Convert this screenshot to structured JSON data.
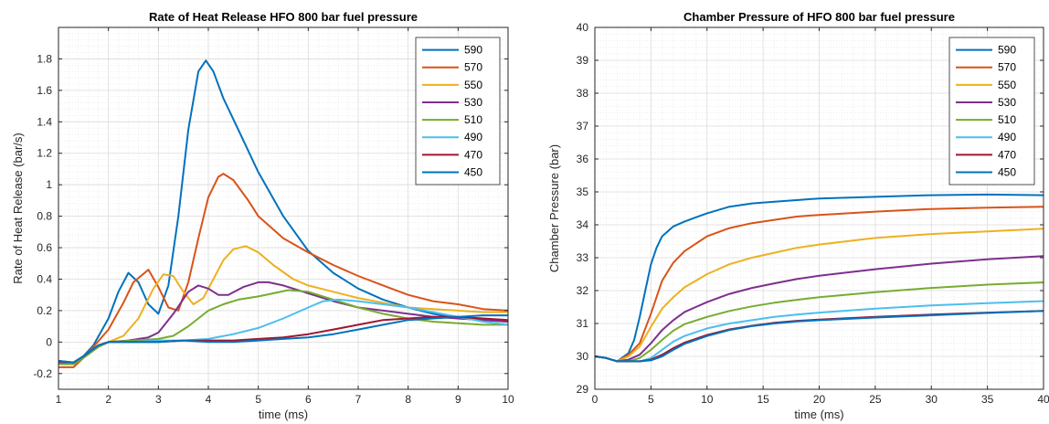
{
  "chart_data": [
    {
      "type": "line",
      "title": "Rate of Heat Release HFO 800 bar fuel pressure",
      "xlabel": "time (ms)",
      "ylabel": "Rate of Heat Release (bar/s)",
      "xlim": [
        1,
        10
      ],
      "ylim": [
        -0.3,
        2.0
      ],
      "xticks": [
        1,
        2,
        3,
        4,
        5,
        6,
        7,
        8,
        9,
        10
      ],
      "yticks": [
        -0.2,
        0,
        0.2,
        0.4,
        0.6,
        0.8,
        1,
        1.2,
        1.4,
        1.6,
        1.8
      ],
      "grid": "major and minor",
      "legend_position": "top-right",
      "series": [
        {
          "name": "590",
          "color": "#0072BD",
          "x": [
            1,
            1.3,
            1.5,
            1.7,
            2,
            2.2,
            2.4,
            2.6,
            2.8,
            3,
            3.2,
            3.4,
            3.6,
            3.8,
            3.95,
            4.1,
            4.3,
            4.6,
            5,
            5.5,
            6,
            6.5,
            7,
            7.5,
            8,
            8.5,
            9,
            9.5,
            10
          ],
          "y": [
            -0.12,
            -0.13,
            -0.09,
            -0.02,
            0.15,
            0.32,
            0.44,
            0.38,
            0.24,
            0.18,
            0.36,
            0.8,
            1.35,
            1.72,
            1.79,
            1.72,
            1.55,
            1.35,
            1.08,
            0.8,
            0.58,
            0.44,
            0.34,
            0.27,
            0.22,
            0.18,
            0.15,
            0.14,
            0.13
          ]
        },
        {
          "name": "570",
          "color": "#D95319",
          "x": [
            1,
            1.3,
            1.5,
            1.7,
            2,
            2.3,
            2.5,
            2.8,
            3,
            3.2,
            3.4,
            3.6,
            3.8,
            4,
            4.2,
            4.3,
            4.5,
            4.8,
            5,
            5.5,
            6,
            6.5,
            7,
            7.5,
            8,
            8.5,
            9,
            9.5,
            10
          ],
          "y": [
            -0.16,
            -0.16,
            -0.1,
            -0.03,
            0.08,
            0.25,
            0.38,
            0.46,
            0.35,
            0.22,
            0.2,
            0.38,
            0.66,
            0.92,
            1.05,
            1.07,
            1.03,
            0.9,
            0.8,
            0.66,
            0.57,
            0.49,
            0.42,
            0.36,
            0.3,
            0.26,
            0.24,
            0.21,
            0.2
          ]
        },
        {
          "name": "550",
          "color": "#EDB120",
          "x": [
            1,
            1.3,
            1.5,
            1.8,
            2,
            2.3,
            2.6,
            2.9,
            3.1,
            3.3,
            3.5,
            3.7,
            3.9,
            4.1,
            4.3,
            4.5,
            4.75,
            5,
            5.3,
            5.7,
            6,
            6.5,
            7,
            7.5,
            8,
            8.5,
            9,
            9.5,
            10
          ],
          "y": [
            -0.13,
            -0.14,
            -0.1,
            -0.03,
            0,
            0.04,
            0.15,
            0.34,
            0.43,
            0.42,
            0.32,
            0.24,
            0.28,
            0.4,
            0.52,
            0.59,
            0.61,
            0.57,
            0.49,
            0.4,
            0.36,
            0.32,
            0.28,
            0.25,
            0.22,
            0.21,
            0.2,
            0.19,
            0.19
          ]
        },
        {
          "name": "530",
          "color": "#7E2F8E",
          "x": [
            1,
            1.3,
            1.5,
            1.8,
            2,
            2.4,
            2.8,
            3,
            3.3,
            3.6,
            3.8,
            4,
            4.2,
            4.4,
            4.7,
            5,
            5.2,
            5.5,
            6,
            6.5,
            7,
            7.5,
            8,
            8.5,
            9,
            9.5,
            10
          ],
          "y": [
            -0.13,
            -0.14,
            -0.1,
            -0.03,
            0,
            0.01,
            0.03,
            0.06,
            0.18,
            0.32,
            0.36,
            0.34,
            0.3,
            0.3,
            0.35,
            0.38,
            0.38,
            0.36,
            0.31,
            0.26,
            0.22,
            0.2,
            0.18,
            0.16,
            0.15,
            0.14,
            0.13
          ]
        },
        {
          "name": "510",
          "color": "#77AC30",
          "x": [
            1,
            1.3,
            1.5,
            1.8,
            2,
            2.5,
            3,
            3.3,
            3.6,
            4,
            4.3,
            4.6,
            5,
            5.3,
            5.6,
            6,
            6.5,
            7,
            7.5,
            8,
            8.5,
            9,
            9.5,
            10
          ],
          "y": [
            -0.14,
            -0.14,
            -0.1,
            -0.03,
            0,
            0.01,
            0.02,
            0.04,
            0.1,
            0.2,
            0.24,
            0.27,
            0.29,
            0.31,
            0.33,
            0.32,
            0.27,
            0.22,
            0.18,
            0.15,
            0.13,
            0.12,
            0.11,
            0.11
          ]
        },
        {
          "name": "490",
          "color": "#4DBEEE",
          "x": [
            1,
            1.3,
            1.5,
            1.8,
            2,
            2.5,
            3,
            3.5,
            4,
            4.5,
            5,
            5.5,
            6,
            6.3,
            6.6,
            7,
            7.5,
            8,
            8.5,
            9,
            9.5,
            10
          ],
          "y": [
            -0.12,
            -0.13,
            -0.09,
            -0.02,
            0,
            0.0,
            0.01,
            0.01,
            0.02,
            0.05,
            0.09,
            0.15,
            0.22,
            0.26,
            0.27,
            0.26,
            0.24,
            0.22,
            0.19,
            0.16,
            0.13,
            0.11
          ]
        },
        {
          "name": "470",
          "color": "#A2142F",
          "x": [
            1,
            1.3,
            1.5,
            1.8,
            2,
            2.5,
            3,
            3.5,
            4,
            4.5,
            5,
            5.5,
            6,
            6.5,
            7,
            7.5,
            8,
            8.5,
            9,
            9.5,
            10
          ],
          "y": [
            -0.12,
            -0.13,
            -0.09,
            -0.02,
            0,
            0.0,
            0.0,
            0.01,
            0.01,
            0.01,
            0.02,
            0.03,
            0.05,
            0.08,
            0.11,
            0.14,
            0.15,
            0.16,
            0.16,
            0.15,
            0.14
          ]
        },
        {
          "name": "450",
          "color": "#0072BD",
          "x": [
            1,
            1.3,
            1.5,
            1.8,
            2,
            2.5,
            3,
            3.5,
            4,
            4.5,
            5,
            5.5,
            6,
            6.5,
            7,
            7.5,
            8,
            8.5,
            9,
            9.5,
            10
          ],
          "y": [
            -0.12,
            -0.13,
            -0.09,
            -0.02,
            0,
            0.0,
            0.0,
            0.01,
            0.0,
            0.0,
            0.01,
            0.02,
            0.03,
            0.05,
            0.08,
            0.11,
            0.14,
            0.15,
            0.16,
            0.17,
            0.17
          ]
        }
      ]
    },
    {
      "type": "line",
      "title": "Chamber Pressure of HFO 800 bar fuel pressure",
      "xlabel": "time (ms)",
      "ylabel": "Chamber Pressure (bar)",
      "xlim": [
        0,
        40
      ],
      "ylim": [
        29,
        40
      ],
      "xticks": [
        0,
        5,
        10,
        15,
        20,
        25,
        30,
        35,
        40
      ],
      "yticks": [
        29,
        30,
        31,
        32,
        33,
        34,
        35,
        36,
        37,
        38,
        39,
        40
      ],
      "grid": "major and minor",
      "legend_position": "top-right",
      "series": [
        {
          "name": "590",
          "color": "#0072BD",
          "x": [
            0,
            1,
            2,
            3,
            3.5,
            4,
            4.5,
            5,
            5.5,
            6,
            7,
            8,
            10,
            12,
            14,
            16,
            18,
            20,
            25,
            30,
            35,
            40
          ],
          "y": [
            30,
            29.95,
            29.85,
            30.1,
            30.5,
            31.2,
            32,
            32.8,
            33.3,
            33.65,
            33.95,
            34.1,
            34.35,
            34.55,
            34.65,
            34.7,
            34.75,
            34.8,
            34.85,
            34.9,
            34.92,
            34.9
          ]
        },
        {
          "name": "570",
          "color": "#D95319",
          "x": [
            0,
            1,
            2,
            3,
            4,
            5,
            5.5,
            6,
            7,
            8,
            10,
            12,
            14,
            16,
            18,
            20,
            25,
            30,
            35,
            40
          ],
          "y": [
            30,
            29.95,
            29.85,
            30.05,
            30.4,
            31.3,
            31.8,
            32.3,
            32.85,
            33.2,
            33.65,
            33.9,
            34.05,
            34.15,
            34.25,
            34.3,
            34.4,
            34.48,
            34.52,
            34.55
          ]
        },
        {
          "name": "550",
          "color": "#EDB120",
          "x": [
            0,
            1,
            2,
            3,
            4,
            5,
            6,
            7,
            8,
            10,
            12,
            14,
            16,
            18,
            20,
            25,
            30,
            35,
            40
          ],
          "y": [
            30,
            29.95,
            29.85,
            30,
            30.3,
            30.9,
            31.45,
            31.8,
            32.1,
            32.5,
            32.8,
            33,
            33.15,
            33.3,
            33.4,
            33.6,
            33.72,
            33.8,
            33.88
          ]
        },
        {
          "name": "530",
          "color": "#7E2F8E",
          "x": [
            0,
            1,
            2,
            3,
            4,
            5,
            6,
            7,
            8,
            10,
            12,
            14,
            16,
            18,
            20,
            25,
            30,
            35,
            40
          ],
          "y": [
            30,
            29.95,
            29.85,
            29.9,
            30.05,
            30.4,
            30.8,
            31.1,
            31.35,
            31.65,
            31.9,
            32.08,
            32.22,
            32.35,
            32.45,
            32.65,
            32.82,
            32.95,
            33.05
          ]
        },
        {
          "name": "510",
          "color": "#77AC30",
          "x": [
            0,
            1,
            2,
            3,
            4,
            5,
            6,
            7,
            8,
            10,
            12,
            14,
            16,
            18,
            20,
            25,
            30,
            35,
            40
          ],
          "y": [
            30,
            29.95,
            29.85,
            29.85,
            29.95,
            30.2,
            30.5,
            30.78,
            30.98,
            31.2,
            31.38,
            31.52,
            31.63,
            31.72,
            31.8,
            31.95,
            32.08,
            32.18,
            32.25
          ]
        },
        {
          "name": "490",
          "color": "#4DBEEE",
          "x": [
            0,
            1,
            2,
            3,
            4,
            5,
            6,
            7,
            8,
            10,
            12,
            14,
            16,
            18,
            20,
            25,
            30,
            35,
            40
          ],
          "y": [
            30,
            29.95,
            29.85,
            29.85,
            29.85,
            29.95,
            30.2,
            30.45,
            30.62,
            30.85,
            31.0,
            31.1,
            31.2,
            31.27,
            31.33,
            31.45,
            31.55,
            31.62,
            31.68
          ]
        },
        {
          "name": "470",
          "color": "#A2142F",
          "x": [
            0,
            1,
            2,
            3,
            4,
            5,
            6,
            7,
            8,
            10,
            12,
            14,
            16,
            18,
            20,
            25,
            30,
            35,
            40
          ],
          "y": [
            30,
            29.95,
            29.85,
            29.85,
            29.85,
            29.9,
            30.05,
            30.25,
            30.42,
            30.65,
            30.82,
            30.93,
            31.02,
            31.08,
            31.12,
            31.2,
            31.27,
            31.33,
            31.38
          ]
        },
        {
          "name": "450",
          "color": "#0072BD",
          "x": [
            0,
            1,
            2,
            3,
            4,
            5,
            6,
            7,
            8,
            10,
            12,
            14,
            16,
            18,
            20,
            25,
            30,
            35,
            40
          ],
          "y": [
            30,
            29.95,
            29.85,
            29.85,
            29.85,
            29.88,
            30.0,
            30.2,
            30.38,
            30.62,
            30.8,
            30.92,
            31.0,
            31.06,
            31.1,
            31.18,
            31.25,
            31.32,
            31.38
          ]
        }
      ]
    }
  ]
}
